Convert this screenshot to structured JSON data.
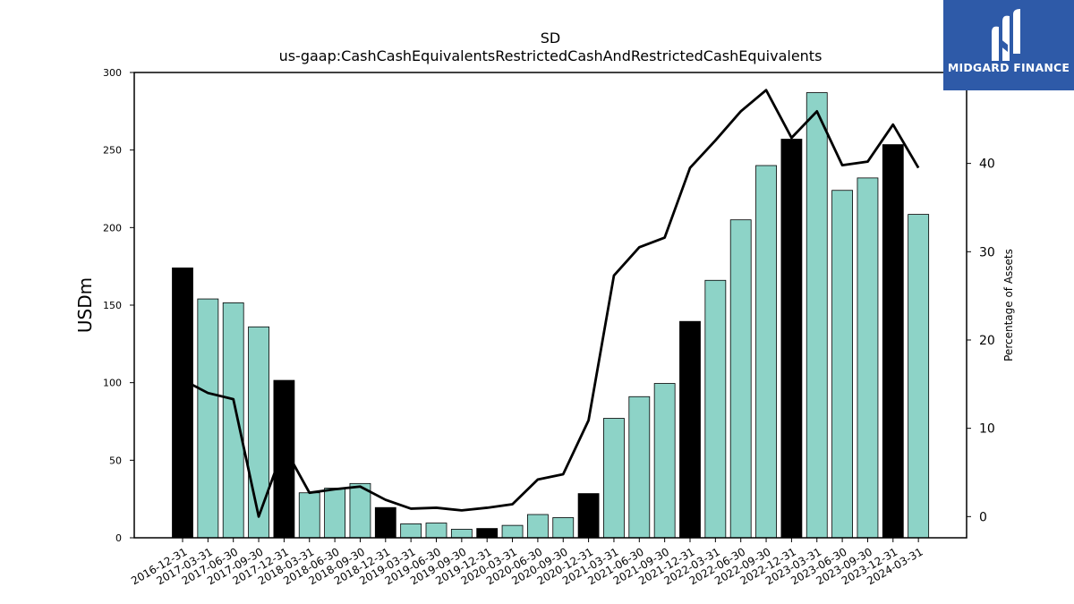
{
  "title": "SD",
  "subtitle": "us-gaap:CashCashEquivalentsRestrictedCashAndRestrictedCashEquivalents",
  "logo": {
    "text": "MIDGARD FINANCE"
  },
  "chart_data": {
    "type": "bar",
    "title": "SD",
    "subtitle": "us-gaap:CashCashEquivalentsRestrictedCashAndRestrictedCashEquivalents",
    "ylabel": "USDm",
    "y2label": "Percentage of Assets",
    "ylim": [
      0,
      300
    ],
    "y2lim": [
      -2.4,
      50.3
    ],
    "yticks": [
      0,
      50,
      100,
      150,
      200,
      250,
      300
    ],
    "y2ticks": [
      0,
      10,
      20,
      30,
      40
    ],
    "categories": [
      "2016-12-31",
      "2017-03-31",
      "2017-06-30",
      "2017-09-30",
      "2017-12-31",
      "2018-03-31",
      "2018-06-30",
      "2018-09-30",
      "2018-12-31",
      "2019-03-31",
      "2019-06-30",
      "2019-09-30",
      "2019-12-31",
      "2020-03-31",
      "2020-06-30",
      "2020-09-30",
      "2020-12-31",
      "2021-03-31",
      "2021-06-30",
      "2021-09-30",
      "2021-12-31",
      "2022-03-31",
      "2022-06-30",
      "2022-09-30",
      "2022-12-31",
      "2023-03-31",
      "2023-06-30",
      "2023-09-30",
      "2023-12-31",
      "2024-03-31"
    ],
    "series": [
      {
        "type": "bar",
        "values": [
          174,
          154,
          151.5,
          136,
          101.5,
          29,
          32,
          35,
          19.5,
          9,
          9.5,
          5.5,
          6,
          8,
          15,
          13,
          28.5,
          77,
          91,
          99.5,
          139.5,
          166,
          205,
          240,
          257,
          287,
          224,
          232,
          253.5,
          208.5
        ],
        "colors": {
          "fiscal_year_end": "#000000",
          "quarter": "#8dd3c7"
        },
        "fiscal_year_end": [
          true,
          false,
          false,
          false,
          true,
          false,
          false,
          false,
          true,
          false,
          false,
          false,
          true,
          false,
          false,
          false,
          true,
          false,
          false,
          false,
          true,
          false,
          false,
          false,
          true,
          false,
          false,
          false,
          true,
          false
        ]
      },
      {
        "type": "line",
        "axis": "right",
        "color": "#000000",
        "values": [
          15.5,
          14,
          13.3,
          0,
          7.9,
          2.7,
          3.1,
          3.4,
          1.9,
          0.9,
          1.0,
          0.7,
          1.0,
          1.4,
          4.2,
          4.8,
          10.9,
          27.3,
          30.5,
          31.6,
          39.5,
          42.6,
          45.9,
          48.3,
          42.9,
          45.9,
          39.8,
          40.2,
          44.4,
          39.5
        ]
      }
    ]
  }
}
